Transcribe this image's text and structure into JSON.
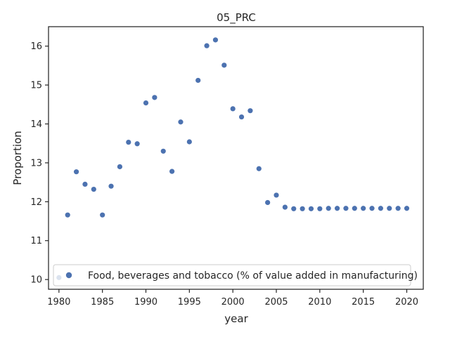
{
  "chart_data": {
    "type": "scatter",
    "title": "05_PRC",
    "xlabel": "year",
    "ylabel": "Proportion",
    "xlim": [
      1978.8,
      2021.9
    ],
    "ylim": [
      9.75,
      16.5
    ],
    "xticks": [
      1980,
      1985,
      1990,
      1995,
      2000,
      2005,
      2010,
      2015,
      2020
    ],
    "yticks": [
      10,
      11,
      12,
      13,
      14,
      15,
      16
    ],
    "grid": false,
    "legend_position": "lower-left",
    "colors": {
      "series": "#4c72b0",
      "axis": "#262626"
    },
    "series": [
      {
        "name": "Food, beverages and tobacco (% of value added in manufacturing)",
        "x": [
          1980,
          1981,
          1982,
          1983,
          1984,
          1985,
          1986,
          1987,
          1988,
          1989,
          1990,
          1991,
          1992,
          1993,
          1994,
          1995,
          1996,
          1997,
          1998,
          1999,
          2000,
          2001,
          2002,
          2003,
          2004,
          2005,
          2006,
          2007,
          2008,
          2009,
          2010,
          2011,
          2012,
          2013,
          2014,
          2015,
          2016,
          2017,
          2018,
          2019,
          2020
        ],
        "y": [
          10.05,
          11.66,
          12.77,
          12.45,
          12.32,
          11.66,
          12.4,
          12.9,
          13.53,
          13.49,
          14.54,
          14.68,
          13.3,
          12.78,
          14.05,
          13.54,
          15.12,
          16.01,
          16.16,
          15.51,
          14.39,
          14.18,
          14.34,
          12.85,
          11.98,
          12.17,
          11.86,
          11.82,
          11.82,
          11.82,
          11.82,
          11.83,
          11.83,
          11.83,
          11.83,
          11.83,
          11.83,
          11.83,
          11.83,
          11.83,
          11.83
        ]
      }
    ]
  }
}
